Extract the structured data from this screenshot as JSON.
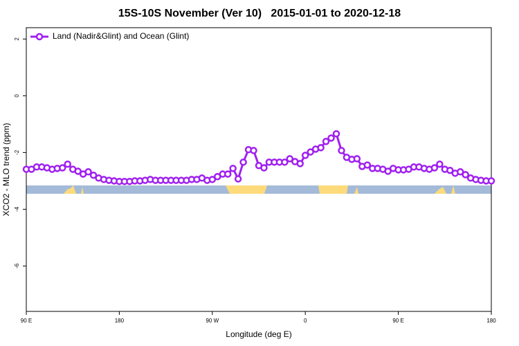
{
  "chart_data": {
    "type": "line",
    "title": "15S-10S November (Ver 10)   2015-01-01 to 2020-12-18",
    "x_label": "Longitude (deg E)",
    "y_label": "XCO2 - MLO trend (ppm)",
    "x": [
      90,
      95,
      100,
      105,
      110,
      115,
      120,
      125,
      130,
      135,
      140,
      145,
      150,
      155,
      160,
      165,
      170,
      175,
      180,
      185,
      190,
      195,
      200,
      205,
      210,
      215,
      220,
      225,
      230,
      235,
      240,
      245,
      250,
      255,
      260,
      265,
      270,
      275,
      280,
      285,
      290,
      295,
      300,
      305,
      310,
      315,
      320,
      325,
      330,
      335,
      340,
      345,
      350,
      355,
      360,
      365,
      370,
      375,
      380,
      385,
      390,
      395,
      400,
      405,
      410,
      415,
      420,
      425,
      430,
      435,
      440,
      445,
      450,
      455,
      460,
      465,
      470,
      475,
      480,
      485,
      490,
      495,
      500,
      505,
      510,
      515,
      520,
      525,
      530,
      535,
      540
    ],
    "series": [
      {
        "name": "Land (Nadir&Glint) and Ocean (Glint)",
        "color": "#a020f0",
        "values": [
          -2.59,
          -2.59,
          -2.51,
          -2.51,
          -2.54,
          -2.59,
          -2.56,
          -2.54,
          -2.41,
          -2.59,
          -2.66,
          -2.76,
          -2.68,
          -2.8,
          -2.9,
          -2.95,
          -2.98,
          -3.0,
          -3.02,
          -3.02,
          -3.02,
          -3.0,
          -3.0,
          -2.98,
          -2.95,
          -2.98,
          -2.98,
          -2.98,
          -2.98,
          -2.98,
          -2.98,
          -2.98,
          -2.95,
          -2.95,
          -2.9,
          -2.98,
          -2.95,
          -2.85,
          -2.76,
          -2.76,
          -2.56,
          -2.93,
          -2.34,
          -1.9,
          -1.93,
          -2.46,
          -2.54,
          -2.34,
          -2.34,
          -2.34,
          -2.34,
          -2.22,
          -2.32,
          -2.39,
          -2.1,
          -1.98,
          -1.88,
          -1.83,
          -1.61,
          -1.49,
          -1.34,
          -1.93,
          -2.17,
          -2.24,
          -2.22,
          -2.49,
          -2.44,
          -2.56,
          -2.56,
          -2.59,
          -2.66,
          -2.56,
          -2.61,
          -2.61,
          -2.59,
          -2.51,
          -2.51,
          -2.56,
          -2.59,
          -2.54,
          -2.41,
          -2.59,
          -2.63,
          -2.73,
          -2.68,
          -2.78,
          -2.9,
          -2.95,
          -2.98,
          -3.0,
          -3.0
        ]
      }
    ],
    "xlim": [
      90,
      540
    ],
    "xticks": [
      {
        "value": 90,
        "label": "90 E"
      },
      180,
      {
        "value": 270,
        "label": "90 W"
      },
      {
        "value": 360,
        "label": "0"
      },
      {
        "value": 450,
        "label": "90 E"
      },
      {
        "value": 540,
        "label": "180"
      }
    ],
    "ylim": [
      -7.6,
      2.4
    ],
    "yticks": [
      2,
      0,
      -2,
      -4,
      -6
    ],
    "legend": "top-left"
  }
}
